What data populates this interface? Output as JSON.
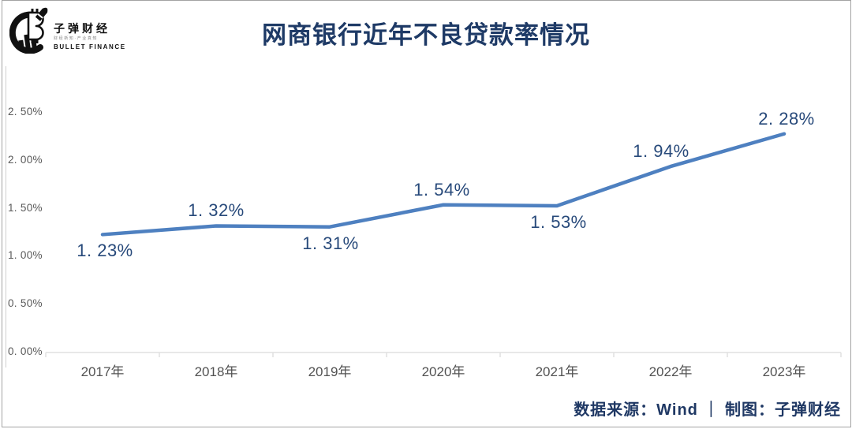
{
  "brand": {
    "name_cn": "子弹财经",
    "tagline": "财经新知·产业真知",
    "name_en": "BULLET FINANCE"
  },
  "header": {
    "title": "网商银行近年不良贷款率情况"
  },
  "footer": {
    "text": "数据来源：Wind ｜ 制图：子弹财经"
  },
  "chart_data": {
    "type": "line",
    "title": "网商银行近年不良贷款率情况",
    "categories": [
      "2017年",
      "2018年",
      "2019年",
      "2020年",
      "2021年",
      "2022年",
      "2023年"
    ],
    "values": [
      1.23,
      1.32,
      1.31,
      1.54,
      1.53,
      1.94,
      2.28
    ],
    "point_labels": [
      "1. 23%",
      "1. 32%",
      "1. 31%",
      "1. 54%",
      "1. 53%",
      "1. 94%",
      "2. 28%"
    ],
    "label_side": [
      "below",
      "above",
      "below",
      "above",
      "below",
      "above",
      "above"
    ],
    "yticks": [
      {
        "value": 0.0,
        "label": "0. 00%"
      },
      {
        "value": 0.5,
        "label": "0. 50%"
      },
      {
        "value": 1.0,
        "label": "1. 00%"
      },
      {
        "value": 1.5,
        "label": "1. 50%"
      },
      {
        "value": 2.0,
        "label": "2. 00%"
      },
      {
        "value": 2.5,
        "label": "2. 50%"
      }
    ],
    "xlabel": "",
    "ylabel": "",
    "ylim": [
      0,
      2.5
    ],
    "grid": false,
    "legend": "none",
    "colors": {
      "line": "#4e80c0",
      "data_label": "#27497a",
      "title": "#1e3a66",
      "axis_line": "#e0e0e0",
      "axis_text": "#595959",
      "footer_text": "#1f3864"
    }
  }
}
